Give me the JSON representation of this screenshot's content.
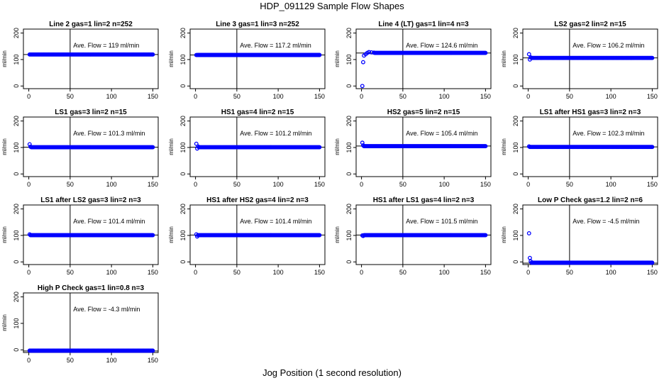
{
  "figure": {
    "title": "HDP_091129  Sample Flow Shapes",
    "xlabel": "Jog Position (1 second resolution)",
    "series_color": "#0000ff"
  },
  "chart_data": [
    {
      "type": "scatter",
      "title": "Line 2 gas=1 lin=2 n=252",
      "ylabel": "ml/min",
      "xlim": [
        0,
        150
      ],
      "ylim": [
        -10,
        215
      ],
      "xticks": [
        0,
        50,
        100,
        150
      ],
      "yticks": [
        0,
        100,
        200
      ],
      "vline_x": 50,
      "hline_y": 119,
      "annotation": "Ave. Flow =  119  ml/min",
      "points": [
        [
          1,
          119
        ],
        [
          2,
          119
        ]
      ],
      "flat": {
        "from": 3,
        "to": 150,
        "y": 119
      }
    },
    {
      "type": "scatter",
      "title": "Line 3 gas=1 lin=3 n=252",
      "ylabel": "ml/min",
      "xlim": [
        0,
        150
      ],
      "ylim": [
        -10,
        215
      ],
      "xticks": [
        0,
        50,
        100,
        150
      ],
      "yticks": [
        0,
        100,
        200
      ],
      "vline_x": 50,
      "hline_y": 117.2,
      "annotation": "Ave. Flow =  117.2  ml/min",
      "points": [
        [
          1,
          117
        ],
        [
          2,
          117
        ]
      ],
      "flat": {
        "from": 3,
        "to": 150,
        "y": 117.2
      }
    },
    {
      "type": "scatter",
      "title": "Line 4 (LT) gas=1 lin=4 n=3",
      "ylabel": "ml/min",
      "xlim": [
        0,
        150
      ],
      "ylim": [
        -10,
        215
      ],
      "xticks": [
        0,
        50,
        100,
        150
      ],
      "yticks": [
        0,
        100,
        200
      ],
      "vline_x": 50,
      "hline_y": 124.6,
      "annotation": "Ave. Flow =  124.6  ml/min",
      "points": [
        [
          1,
          0
        ],
        [
          2,
          90
        ],
        [
          3,
          115
        ],
        [
          5,
          120
        ],
        [
          7,
          125
        ],
        [
          9,
          128
        ],
        [
          12,
          127
        ],
        [
          15,
          126
        ]
      ],
      "flat": {
        "from": 16,
        "to": 150,
        "y": 125
      }
    },
    {
      "type": "scatter",
      "title": "LS2 gas=2 lin=2 n=15",
      "ylabel": "ml/min",
      "xlim": [
        0,
        150
      ],
      "ylim": [
        -10,
        215
      ],
      "xticks": [
        0,
        50,
        100,
        150
      ],
      "yticks": [
        0,
        100,
        200
      ],
      "vline_x": 50,
      "hline_y": 106.2,
      "annotation": "Ave. Flow =  106.2  ml/min",
      "points": [
        [
          1,
          120
        ],
        [
          2,
          100
        ],
        [
          3,
          108
        ]
      ],
      "flat": {
        "from": 4,
        "to": 150,
        "y": 106
      }
    },
    {
      "type": "scatter",
      "title": "LS1 gas=3 lin=2 n=15",
      "ylabel": "ml/min",
      "xlim": [
        0,
        150
      ],
      "ylim": [
        -10,
        215
      ],
      "xticks": [
        0,
        50,
        100,
        150
      ],
      "yticks": [
        0,
        100,
        200
      ],
      "vline_x": 50,
      "hline_y": 101.3,
      "annotation": "Ave. Flow =  101.3  ml/min",
      "points": [
        [
          1,
          112
        ],
        [
          2,
          103
        ]
      ],
      "flat": {
        "from": 3,
        "to": 150,
        "y": 101
      }
    },
    {
      "type": "scatter",
      "title": "HS1 gas=4 lin=2 n=15",
      "ylabel": "ml/min",
      "xlim": [
        0,
        150
      ],
      "ylim": [
        -10,
        215
      ],
      "xticks": [
        0,
        50,
        100,
        150
      ],
      "yticks": [
        0,
        100,
        200
      ],
      "vline_x": 50,
      "hline_y": 101.2,
      "annotation": "Ave. Flow =  101.2  ml/min",
      "points": [
        [
          1,
          114
        ],
        [
          2,
          96
        ],
        [
          3,
          104
        ]
      ],
      "flat": {
        "from": 4,
        "to": 150,
        "y": 101
      }
    },
    {
      "type": "scatter",
      "title": "HS2 gas=5 lin=2 n=15",
      "ylabel": "ml/min",
      "xlim": [
        0,
        150
      ],
      "ylim": [
        -10,
        215
      ],
      "xticks": [
        0,
        50,
        100,
        150
      ],
      "yticks": [
        0,
        100,
        200
      ],
      "vline_x": 50,
      "hline_y": 105.4,
      "annotation": "Ave. Flow =  105.4  ml/min",
      "points": [
        [
          1,
          118
        ],
        [
          2,
          108
        ]
      ],
      "flat": {
        "from": 3,
        "to": 150,
        "y": 105
      }
    },
    {
      "type": "scatter",
      "title": "LS1 after HS1 gas=3 lin=2 n=3",
      "ylabel": "ml/min",
      "xlim": [
        0,
        150
      ],
      "ylim": [
        -10,
        215
      ],
      "xticks": [
        0,
        50,
        100,
        150
      ],
      "yticks": [
        0,
        100,
        200
      ],
      "vline_x": 50,
      "hline_y": 102.3,
      "annotation": "Ave. Flow =  102.3  ml/min",
      "points": [
        [
          1,
          104
        ],
        [
          2,
          102
        ]
      ],
      "flat": {
        "from": 3,
        "to": 150,
        "y": 102
      }
    },
    {
      "type": "scatter",
      "title": "LS1 after LS2 gas=3 lin=2 n=3",
      "ylabel": "ml/min",
      "xlim": [
        0,
        150
      ],
      "ylim": [
        -10,
        215
      ],
      "xticks": [
        0,
        50,
        100,
        150
      ],
      "yticks": [
        0,
        100,
        200
      ],
      "vline_x": 50,
      "hline_y": 101.4,
      "annotation": "Ave. Flow =  101.4  ml/min",
      "points": [
        [
          1,
          104
        ],
        [
          2,
          101
        ]
      ],
      "flat": {
        "from": 3,
        "to": 150,
        "y": 101
      }
    },
    {
      "type": "scatter",
      "title": "HS1 after HS2 gas=4 lin=2 n=3",
      "ylabel": "ml/min",
      "xlim": [
        0,
        150
      ],
      "ylim": [
        -10,
        215
      ],
      "xticks": [
        0,
        50,
        100,
        150
      ],
      "yticks": [
        0,
        100,
        200
      ],
      "vline_x": 50,
      "hline_y": 101.4,
      "annotation": "Ave. Flow =  101.4  ml/min",
      "points": [
        [
          1,
          104
        ],
        [
          2,
          96
        ],
        [
          3,
          101
        ]
      ],
      "flat": {
        "from": 4,
        "to": 150,
        "y": 101
      }
    },
    {
      "type": "scatter",
      "title": "HS1 after LS1 gas=4 lin=2 n=3",
      "ylabel": "ml/min",
      "xlim": [
        0,
        150
      ],
      "ylim": [
        -10,
        215
      ],
      "xticks": [
        0,
        50,
        100,
        150
      ],
      "yticks": [
        0,
        100,
        200
      ],
      "vline_x": 50,
      "hline_y": 101.5,
      "annotation": "Ave. Flow =  101.5  ml/min",
      "points": [
        [
          1,
          100
        ],
        [
          2,
          98
        ]
      ],
      "flat": {
        "from": 3,
        "to": 150,
        "y": 101
      }
    },
    {
      "type": "scatter",
      "title": "Low P Check gas=1.2 lin=2 n=6",
      "ylabel": "ml/min",
      "xlim": [
        0,
        150
      ],
      "ylim": [
        -10,
        215
      ],
      "xticks": [
        0,
        50,
        100,
        150
      ],
      "yticks": [
        0,
        100,
        200
      ],
      "vline_x": 50,
      "hline_y": -4.5,
      "annotation": "Ave. Flow =  -4.5  ml/min",
      "points": [
        [
          1,
          108
        ],
        [
          2,
          15
        ],
        [
          3,
          2
        ]
      ],
      "flat": {
        "from": 4,
        "to": 150,
        "y": -3
      }
    },
    {
      "type": "scatter",
      "title": "High P Check gas=1 lin=0.8 n=3",
      "ylabel": "ml/min",
      "xlim": [
        0,
        150
      ],
      "ylim": [
        -10,
        215
      ],
      "xticks": [
        0,
        50,
        100,
        150
      ],
      "yticks": [
        0,
        100,
        200
      ],
      "vline_x": 50,
      "hline_y": -4.3,
      "annotation": "Ave. Flow =  -4.3  ml/min",
      "points": [
        [
          1,
          -3
        ]
      ],
      "flat": {
        "from": 2,
        "to": 150,
        "y": -3
      }
    }
  ]
}
